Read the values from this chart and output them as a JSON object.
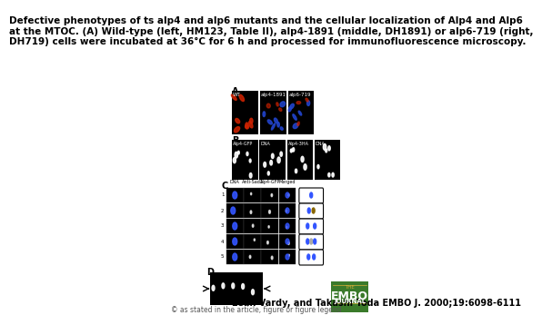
{
  "title_text": "Defective phenotypes of ts alp4 and alp6 mutants and the cellular localization of Alp4 and Alp6\nat the MTOC. (A) Wild-type (left, HM123, Table II), alp4-1891 (middle, DH1891) or alp6-719 (right,\nDH719) cells were incubated at 36°C for 6 h and processed for immunofluorescence microscopy.",
  "citation_text": "Leah Vardy, and Takashi Toda EMBO J. 2000;19:6098-6111",
  "copyright_text": "© as stated in the article, figure or figure legend",
  "bg_color": "#ffffff",
  "embo_green": "#3a7a2a",
  "title_fontsize": 7.5,
  "citation_fontsize": 7.0,
  "copyright_fontsize": 5.5
}
